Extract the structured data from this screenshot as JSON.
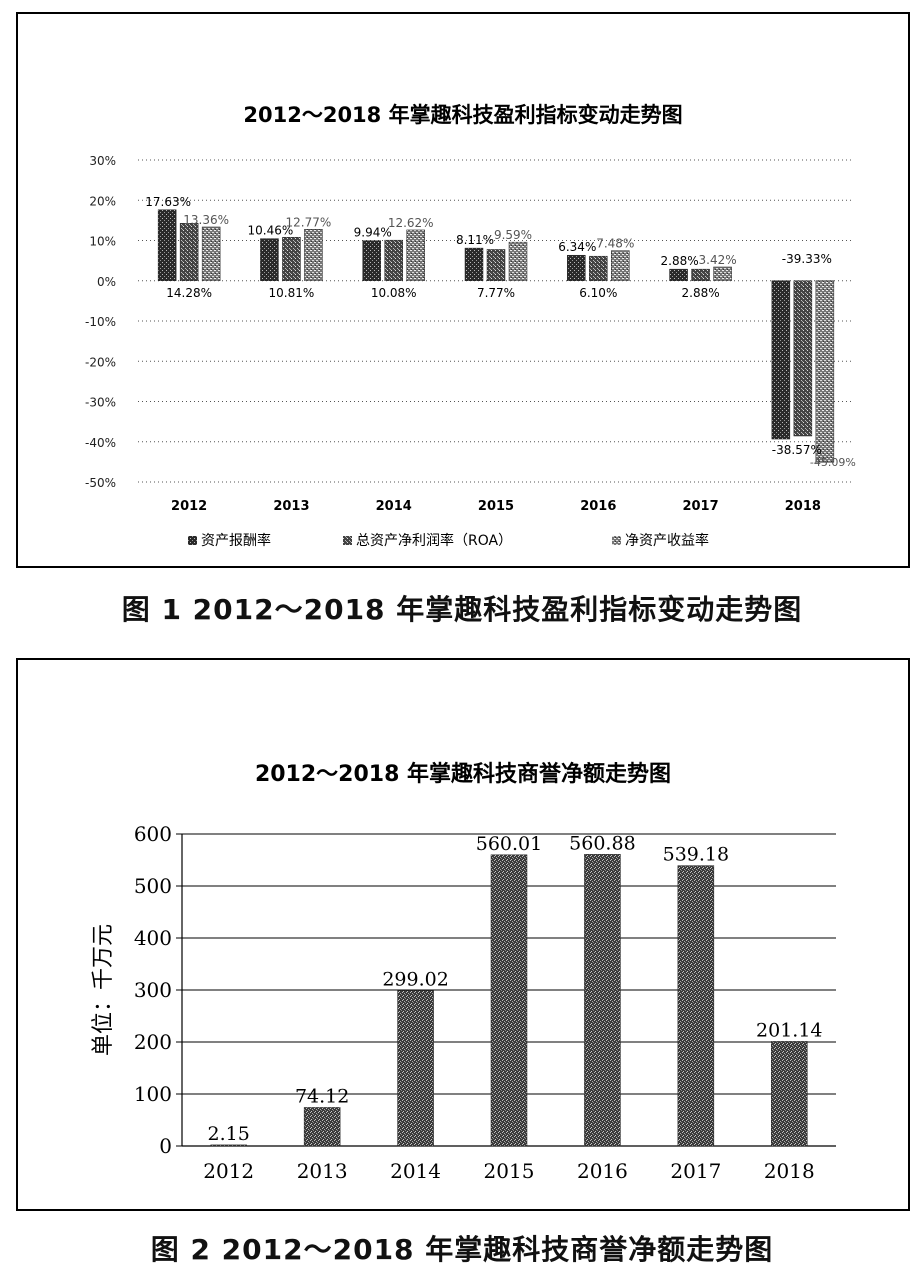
{
  "figure1": {
    "caption": "图 1   2012～2018 年掌趣科技盈利指标变动走势图",
    "chart_data": {
      "type": "bar",
      "title": "2012～2018 年掌趣科技盈利指标变动走势图",
      "categories": [
        "2012",
        "2013",
        "2014",
        "2015",
        "2016",
        "2017",
        "2018"
      ],
      "series": [
        {
          "name": "资产报酬率",
          "values": [
            17.63,
            10.46,
            9.94,
            8.11,
            6.34,
            2.88,
            -39.33
          ],
          "labels": [
            "17.63%",
            "10.46%",
            "9.94%",
            "8.11%",
            "6.34%",
            "2.88%",
            "-39.33%"
          ]
        },
        {
          "name": "总资产净利润率（ROA）",
          "values": [
            14.28,
            10.81,
            10.08,
            7.77,
            6.1,
            2.88,
            -38.57
          ],
          "labels": [
            "14.28%",
            "10.81%",
            "10.08%",
            "7.77%",
            "6.10%",
            "2.88%",
            "-38.57%"
          ]
        },
        {
          "name": "净资产收益率",
          "values": [
            13.36,
            12.77,
            12.62,
            9.59,
            7.48,
            3.42,
            -45.09
          ],
          "labels": [
            "13.36%",
            "12.77%",
            "12.62%",
            "9.59%",
            "7.48%",
            "3.42%",
            "-45.09%"
          ]
        }
      ],
      "ylim": [
        -50,
        30
      ],
      "yticks": [
        30,
        20,
        10,
        0,
        -10,
        -20,
        -30,
        -40,
        -50
      ],
      "ytick_labels": [
        "30%",
        "20%",
        "10%",
        "0%",
        "-10%",
        "-20%",
        "-30%",
        "-40%",
        "-50%"
      ],
      "grid": "dotted",
      "legend": "bottom"
    }
  },
  "figure2": {
    "caption": "图 2   2012～2018 年掌趣科技商誉净额走势图",
    "chart_data": {
      "type": "bar",
      "title": "2012～2018 年掌趣科技商誉净额走势图",
      "ylabel": "单位：千万元",
      "categories": [
        "2012",
        "2013",
        "2014",
        "2015",
        "2016",
        "2017",
        "2018"
      ],
      "values": [
        2.15,
        74.12,
        299.02,
        560.01,
        560.88,
        539.18,
        201.14
      ],
      "value_labels": [
        "2.15",
        "74.12",
        "299.02",
        "560.01",
        "560.88",
        "539.18",
        "201.14"
      ],
      "ylim": [
        0,
        600
      ],
      "yticks": [
        0,
        100,
        200,
        300,
        400,
        500,
        600
      ],
      "ytick_labels": [
        "0",
        "100",
        "200",
        "300",
        "400",
        "500",
        "600"
      ],
      "grid": true
    }
  }
}
